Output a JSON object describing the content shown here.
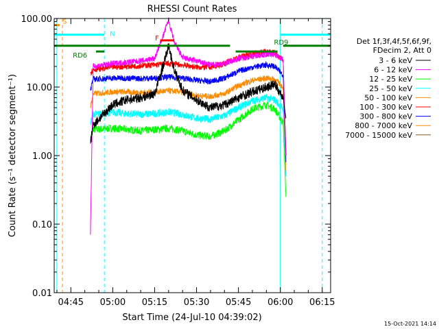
{
  "chart_data": {
    "type": "line",
    "title": "RHESSI Count Rates",
    "xlabel": "Start Time (24-Jul-10 04:39:02)",
    "ylabel": "Count Rate (s⁻¹ detector segment⁻¹)",
    "yscale": "log",
    "ylim": [
      0.01,
      100
    ],
    "xlim": [
      "04:39:02",
      "06:18:00"
    ],
    "x_ticks": [
      "04:45",
      "05:00",
      "05:15",
      "05:30",
      "05:45",
      "06:00",
      "06:15"
    ],
    "y_ticks": [
      "0.01",
      "0.10",
      "1.00",
      "10.00",
      "100.00"
    ],
    "legend": {
      "header": [
        "Det 1f,3f,4f,5f,6f,9f,",
        "FDecim 2, Att 0"
      ],
      "placement": "right"
    },
    "series": [
      {
        "name": "3 - 6 keV",
        "color": "#000000",
        "x": [
          "04:52",
          "04:53",
          "05:00",
          "05:05",
          "05:10",
          "05:15",
          "05:18",
          "05:20",
          "05:22",
          "05:25",
          "05:30",
          "05:35",
          "05:40",
          "05:45",
          "05:50",
          "05:55",
          "05:58",
          "06:01",
          "06:02"
        ],
        "y": [
          1.5,
          2.8,
          5.5,
          6.5,
          7.0,
          8.0,
          20,
          40,
          18,
          9.0,
          6.5,
          5.0,
          5.5,
          7.0,
          8.5,
          10,
          11,
          7,
          3.5
        ]
      },
      {
        "name": "6 - 12 keV",
        "color": "#ff00ff",
        "x": [
          "04:52",
          "04:53",
          "05:00",
          "05:05",
          "05:10",
          "05:15",
          "05:18",
          "05:20",
          "05:22",
          "05:25",
          "05:30",
          "05:35",
          "05:40",
          "05:45",
          "05:50",
          "05:55",
          "05:58",
          "06:01",
          "06:02"
        ],
        "y": [
          0.07,
          20,
          22,
          23,
          24,
          26,
          55,
          95,
          45,
          27,
          24,
          21,
          22,
          26,
          28,
          30,
          30,
          25,
          1.0
        ]
      },
      {
        "name": "12 - 25 keV",
        "color": "#00ff00",
        "x": [
          "04:52",
          "04:53",
          "05:00",
          "05:05",
          "05:10",
          "05:15",
          "05:20",
          "05:25",
          "05:30",
          "05:35",
          "05:40",
          "05:45",
          "05:50",
          "05:55",
          "05:58",
          "06:01",
          "06:02"
        ],
        "y": [
          1.7,
          2.4,
          2.5,
          2.4,
          2.3,
          2.4,
          2.5,
          2.3,
          2.0,
          1.9,
          2.3,
          3.3,
          4.8,
          5.5,
          4.8,
          3.0,
          0.25
        ]
      },
      {
        "name": "25 - 50 keV",
        "color": "#00ffff",
        "x": [
          "04:52",
          "04:53",
          "05:00",
          "05:05",
          "05:10",
          "05:15",
          "05:20",
          "05:25",
          "05:30",
          "05:35",
          "05:40",
          "05:45",
          "05:50",
          "05:55",
          "05:58",
          "06:01",
          "06:02"
        ],
        "y": [
          3.0,
          4.0,
          4.3,
          4.1,
          4.0,
          4.1,
          4.3,
          4.0,
          3.5,
          3.4,
          3.8,
          5.0,
          6.3,
          7.0,
          6.5,
          4.8,
          0.5
        ]
      },
      {
        "name": "50 - 100 keV",
        "color": "#ff8c00",
        "x": [
          "04:52",
          "04:53",
          "05:00",
          "05:05",
          "05:10",
          "05:15",
          "05:20",
          "05:25",
          "05:30",
          "05:35",
          "05:40",
          "05:45",
          "05:50",
          "05:55",
          "05:58",
          "06:01",
          "06:02"
        ],
        "y": [
          5.0,
          8.0,
          8.5,
          8.5,
          8.3,
          8.5,
          8.8,
          8.5,
          7.5,
          7.3,
          8.0,
          10.5,
          12.5,
          13.5,
          13,
          10,
          0.6
        ]
      },
      {
        "name": "100 - 300 keV",
        "color": "#ff0000",
        "x": [
          "04:52",
          "04:53",
          "05:00",
          "05:05",
          "05:10",
          "05:15",
          "05:20",
          "05:25",
          "05:30",
          "05:35",
          "05:40",
          "05:45",
          "05:50",
          "05:55",
          "05:58",
          "06:01",
          "06:02"
        ],
        "y": [
          16,
          18,
          19.5,
          20,
          20.5,
          21,
          22,
          21,
          19.5,
          19.5,
          22,
          27,
          31,
          33,
          32,
          25,
          1.0
        ]
      },
      {
        "name": "300 - 800 keV",
        "color": "#0000ff",
        "x": [
          "04:52",
          "04:53",
          "05:00",
          "05:05",
          "05:10",
          "05:15",
          "05:20",
          "05:25",
          "05:30",
          "05:35",
          "05:40",
          "05:45",
          "05:50",
          "05:55",
          "05:58",
          "06:01",
          "06:02"
        ],
        "y": [
          9.0,
          13,
          13.5,
          13.5,
          13.3,
          13.5,
          14,
          13.5,
          12.5,
          12.0,
          13.5,
          17,
          19.5,
          21,
          20,
          15,
          0.8
        ]
      },
      {
        "name": "800 - 7000 keV",
        "color": "#ff8c00",
        "x": [],
        "y": []
      },
      {
        "name": "7000 - 15000 keV",
        "color": "#8b5a2b",
        "x": [],
        "y": []
      }
    ],
    "markers": [
      {
        "label": "S",
        "color": "#ff8c00",
        "x_start": "04:39",
        "x_end": "04:41",
        "y": 80
      },
      {
        "label": "N",
        "color": "#00ffff",
        "x_start": "04:39",
        "x_end": "04:57",
        "y": 58
      },
      {
        "label": "RD6",
        "color": "#008000",
        "x_start": "04:54",
        "x_end": "04:57",
        "y": 33
      },
      {
        "label": "RD9",
        "color": "#008000",
        "x_start": "04:39",
        "x_end": "05:42",
        "y": 40
      },
      {
        "label": "F",
        "color": "#ff0000",
        "x_start": "05:17",
        "x_end": "05:22",
        "y": 48
      }
    ],
    "extra_bars": [
      {
        "color": "#008000",
        "x_start": "05:44",
        "x_end": "05:59",
        "y": 33
      },
      {
        "color": "#008000",
        "x_start": "06:01",
        "x_end": "06:18",
        "y": 40
      },
      {
        "color": "#00ffff",
        "x_start": "06:00",
        "x_end": "06:18",
        "y": 58
      }
    ],
    "vlines": [
      {
        "x": "04:40",
        "color": "#00ffff",
        "style": "solid"
      },
      {
        "x": "04:42",
        "color": "#ff8c00",
        "style": "dashed"
      },
      {
        "x": "04:57",
        "color": "#00ffff",
        "style": "dashed"
      },
      {
        "x": "06:00",
        "color": "#00ffff",
        "style": "solid"
      },
      {
        "x": "06:15",
        "color": "#00ffff",
        "style": "dashed"
      }
    ],
    "grid": false
  },
  "footer_date": "15-Oct-2021 14:14"
}
